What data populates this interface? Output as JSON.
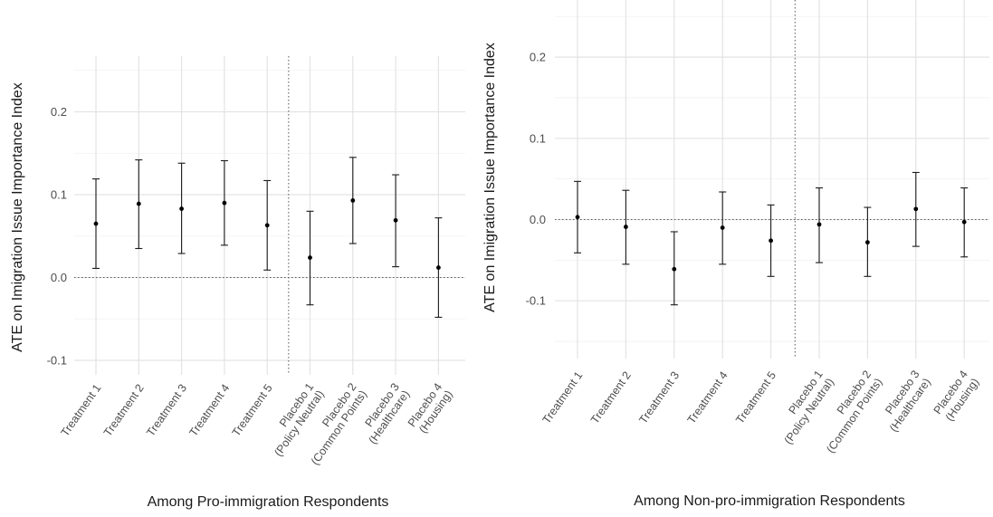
{
  "chart_data": [
    {
      "type": "scatter",
      "subtype": "point-errorbar",
      "ylabel": "ATE on Imigration Issue Importance Index",
      "xlabel": "Among Pro-immigration Respondents",
      "ylim": [
        -0.1,
        0.2
      ],
      "y_ticks": [
        "-0.1",
        "0.0",
        "0.1",
        "0.2"
      ],
      "y_tick_values": [
        -0.1,
        0.0,
        0.1,
        0.2
      ],
      "grid": true,
      "reference_lines": {
        "y": 0.0,
        "between_categories": [
          5,
          6
        ]
      },
      "categories": [
        [
          "Treatment 1"
        ],
        [
          "Treatment 2"
        ],
        [
          "Treatment 3"
        ],
        [
          "Treatment 4"
        ],
        [
          "Treatment 5"
        ],
        [
          "Placebo 1",
          "(Policy Neutral)"
        ],
        [
          "Placebo 2",
          "(Common Points)"
        ],
        [
          "Placebo 3",
          "(Healthcare)"
        ],
        [
          "Placebo 4",
          "(Housing)"
        ]
      ],
      "estimates": [
        0.065,
        0.089,
        0.083,
        0.09,
        0.063,
        0.024,
        0.093,
        0.069,
        0.012
      ],
      "ci_low": [
        0.011,
        0.035,
        0.029,
        0.039,
        0.009,
        -0.033,
        0.041,
        0.013,
        -0.048
      ],
      "ci_high": [
        0.119,
        0.142,
        0.138,
        0.141,
        0.117,
        0.08,
        0.145,
        0.124,
        0.072
      ]
    },
    {
      "type": "scatter",
      "subtype": "point-errorbar",
      "ylabel": "ATE on Imigration Issue Importance Index",
      "xlabel": "Among Non-pro-immigration Respondents",
      "ylim": [
        -0.1,
        0.2
      ],
      "y_ticks": [
        "-0.1",
        "0.0",
        "0.1",
        "0.2"
      ],
      "y_tick_values": [
        -0.1,
        0.0,
        0.1,
        0.2
      ],
      "grid": true,
      "reference_lines": {
        "y": 0.0,
        "between_categories": [
          5,
          6
        ]
      },
      "categories": [
        [
          "Treatment 1"
        ],
        [
          "Treatment 2"
        ],
        [
          "Treatment 3"
        ],
        [
          "Treatment 4"
        ],
        [
          "Treatment 5"
        ],
        [
          "Placebo 1",
          "(Policy Neutral)"
        ],
        [
          "Placebo 2",
          "(Common Points)"
        ],
        [
          "Placebo 3",
          "(Healthcare)"
        ],
        [
          "Placebo 4",
          "(Housing)"
        ]
      ],
      "estimates": [
        0.003,
        -0.009,
        -0.061,
        -0.01,
        -0.026,
        -0.006,
        -0.028,
        0.013,
        -0.003
      ],
      "ci_low": [
        -0.041,
        -0.055,
        -0.105,
        -0.055,
        -0.07,
        -0.053,
        -0.07,
        -0.033,
        -0.046
      ],
      "ci_high": [
        0.047,
        0.036,
        -0.015,
        0.034,
        0.018,
        0.039,
        0.015,
        0.058,
        0.039
      ]
    }
  ]
}
